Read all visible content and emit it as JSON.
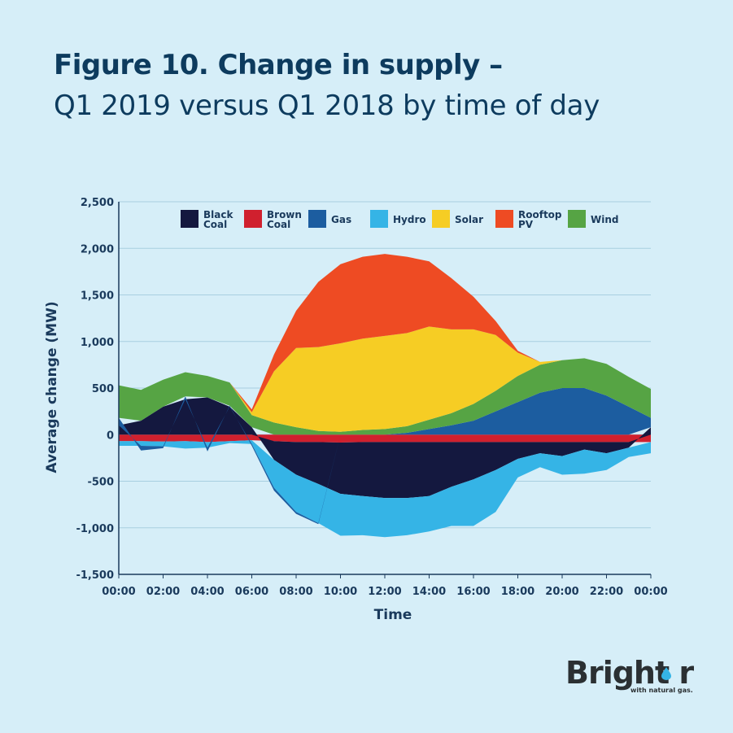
{
  "header": {
    "title": "Figure 10.  Change in supply  –",
    "subtitle": "Q1 2019 versus Q1 2018 by time of day"
  },
  "logo": {
    "brand": "Bright r",
    "tagline": "with natural gas."
  },
  "chart_data": {
    "type": "area",
    "stacked": true,
    "xlabel": "Time",
    "ylabel": "Average change (MW)",
    "ylim": [
      -1500,
      2500
    ],
    "y_ticks": [
      {
        "v": 2500,
        "label": "2,500"
      },
      {
        "v": 2000,
        "label": "2,000"
      },
      {
        "v": 1500,
        "label": "1,500"
      },
      {
        "v": 1000,
        "label": "1,000"
      },
      {
        "v": 500,
        "label": "500"
      },
      {
        "v": 0,
        "label": "0"
      },
      {
        "v": -500,
        "label": "-500"
      },
      {
        "v": -1000,
        "label": "-1,000"
      },
      {
        "v": -1500,
        "label": "-1,500"
      }
    ],
    "x_tick_labels": [
      "00:00",
      "02:00",
      "04:00",
      "06:00",
      "08:00",
      "10:00",
      "12:00",
      "14:00",
      "16:00",
      "18:00",
      "20:00",
      "22:00",
      "00:00"
    ],
    "grid": true,
    "legend_position": "top",
    "x": [
      0,
      1,
      2,
      3,
      4,
      5,
      6,
      7,
      8,
      9,
      10,
      11,
      12,
      13,
      14,
      15,
      16,
      17,
      18,
      19,
      20,
      21,
      22,
      23,
      24
    ],
    "series": [
      {
        "name": "Black\nCoal",
        "color": "#14183f",
        "values": [
          100,
          150,
          300,
          380,
          400,
          300,
          80,
          -200,
          -350,
          -450,
          -550,
          -580,
          -600,
          -600,
          -580,
          -480,
          -400,
          -300,
          -180,
          -120,
          -150,
          -80,
          -120,
          -60,
          80
        ]
      },
      {
        "name": "Brown\nCoal",
        "color": "#d0202e",
        "values": [
          -70,
          -70,
          -75,
          -70,
          -80,
          -70,
          -60,
          -70,
          -80,
          -80,
          -85,
          -80,
          -80,
          -80,
          -80,
          -80,
          -80,
          -80,
          -80,
          -80,
          -80,
          -80,
          -80,
          -80,
          -80
        ]
      },
      {
        "name": "Gas",
        "color": "#1c5da0",
        "values": [
          80,
          -50,
          -20,
          30,
          -40,
          10,
          -20,
          -30,
          -20,
          -10,
          0,
          0,
          0,
          20,
          60,
          100,
          150,
          250,
          350,
          450,
          500,
          500,
          420,
          300,
          100
        ]
      },
      {
        "name": "Hydro",
        "color": "#35b4e6",
        "values": [
          -50,
          -50,
          -50,
          -80,
          -60,
          -20,
          -40,
          -300,
          -400,
          -420,
          -450,
          -420,
          -420,
          -400,
          -380,
          -420,
          -500,
          -450,
          -200,
          -150,
          -200,
          -260,
          -180,
          -100,
          -120
        ]
      },
      {
        "name": "Solar",
        "color": "#f6cd24",
        "values": [
          0,
          0,
          0,
          0,
          0,
          0,
          30,
          550,
          850,
          900,
          950,
          980,
          1000,
          1000,
          1000,
          900,
          800,
          600,
          250,
          30,
          0,
          0,
          0,
          0,
          0
        ]
      },
      {
        "name": "Rooftop\nPV",
        "color": "#ee4b23",
        "values": [
          0,
          0,
          0,
          0,
          0,
          0,
          30,
          180,
          400,
          700,
          850,
          880,
          880,
          820,
          700,
          550,
          350,
          150,
          20,
          0,
          0,
          0,
          0,
          0,
          0
        ]
      },
      {
        "name": "Wind",
        "color": "#56a444",
        "values": [
          350,
          330,
          290,
          260,
          230,
          250,
          130,
          130,
          80,
          40,
          30,
          50,
          60,
          70,
          100,
          130,
          180,
          220,
          280,
          300,
          300,
          320,
          340,
          320,
          310
        ]
      }
    ]
  }
}
